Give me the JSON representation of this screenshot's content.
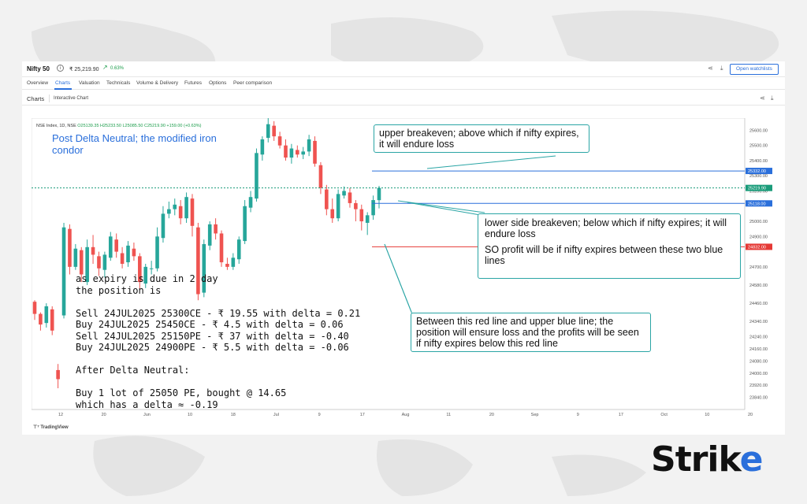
{
  "header": {
    "title": "Nifty 50",
    "price": "₹ 25,219.90",
    "change": "0.63%",
    "watchlist_button": "Open watchlists"
  },
  "tabs": [
    "Overview",
    "Charts",
    "Valuation",
    "Technicals",
    "Volume & Delivery",
    "Futures",
    "Options",
    "Peer comparison"
  ],
  "subbar": {
    "charts": "Charts",
    "interactive": "Interactive Chart"
  },
  "nse_label": {
    "prefix": "NSE Index, 1D, NSE",
    "ohlc": "O25139.35  H25233.50  L25085.50  C25219.90  +159.00 (+0.63%)"
  },
  "annotations": {
    "title": "Post Delta Neutral; the modified iron condor",
    "position_text": "as expiry is due in 2 day\nthe position is\n\nSell 24JUL2025 25300CE - ₹ 19.55 with delta = 0.21\nBuy 24JUL2025 25450CE - ₹ 4.5 with delta = 0.06\nSell 24JUL2025 25150PE - ₹ 37 with delta = -0.40\nBuy 24JUL2025 24900PE - ₹ 5.5 with delta = -0.06\n\nAfter Delta Neutral:\n\nBuy 1 lot of 25050 PE, bought @ 14.65\nwhich has a delta ≈ -0.19",
    "upper_box": "upper breakeven; above which if nifty expires, it will endure loss",
    "lower_box_1": "lower side breakeven; below which if nifty expires; it will endure loss",
    "lower_box_2": "SO profit will be if nifty expires between these two blue lines",
    "red_box": "Between this red line and upper blue line; the position will ensure loss and the profits will be seen if nifty expires below this red line"
  },
  "footer": {
    "tradingview": "TradingView"
  },
  "brand": {
    "logo_start": "Stri",
    "logo_k": "k",
    "logo_e": "e"
  },
  "chart_data": {
    "type": "candlestick",
    "y_ticks": [
      25600,
      25500,
      25400,
      25300,
      25200,
      25000,
      24900,
      24700,
      24580,
      24460,
      24340,
      24240,
      24160,
      24080,
      24000,
      23920,
      23840
    ],
    "ylim": [
      23760,
      25680
    ],
    "x_ticks": [
      "12",
      "20",
      "Jun",
      "10",
      "18",
      "Jul",
      "9",
      "17",
      "Aug",
      "11",
      "20",
      "Sep",
      "9",
      "17",
      "Oct",
      "10",
      "20"
    ],
    "levels": [
      {
        "label": "25332.00",
        "value": 25332,
        "color": "#2a6fdb"
      },
      {
        "label": "25219.90",
        "value": 25219.9,
        "color": "#1a9c7a"
      },
      {
        "label": "25118.00",
        "value": 25118,
        "color": "#2a6fdb"
      },
      {
        "label": "24832.00",
        "value": 24832,
        "color": "#e53935"
      }
    ],
    "candles": [
      [
        24470,
        24390,
        24480,
        24350
      ],
      [
        24390,
        24320,
        24400,
        24280
      ],
      [
        24330,
        24440,
        24460,
        24300
      ],
      [
        24420,
        24280,
        24440,
        24250
      ],
      [
        24020,
        23960,
        24060,
        23900
      ],
      [
        24380,
        24960,
        24990,
        24360
      ],
      [
        24950,
        24700,
        24980,
        24650
      ],
      [
        24700,
        24820,
        24850,
        24680
      ],
      [
        24810,
        24650,
        24830,
        24600
      ],
      [
        24600,
        24830,
        24880,
        24580
      ],
      [
        24830,
        24780,
        24910,
        24720
      ],
      [
        24770,
        24690,
        24800,
        24640
      ],
      [
        24680,
        24780,
        24800,
        24630
      ],
      [
        24760,
        24900,
        24930,
        24740
      ],
      [
        24880,
        24800,
        24920,
        24760
      ],
      [
        24790,
        24720,
        24830,
        24690
      ],
      [
        24730,
        24840,
        24870,
        24700
      ],
      [
        24820,
        24770,
        24860,
        24740
      ],
      [
        24770,
        24600,
        24790,
        24550
      ],
      [
        24590,
        24700,
        24720,
        24560
      ],
      [
        24690,
        24690,
        24740,
        24650
      ],
      [
        24690,
        24900,
        24960,
        24670
      ],
      [
        24890,
        25050,
        25100,
        24860
      ],
      [
        25050,
        25080,
        25130,
        25020
      ],
      [
        25080,
        25110,
        25150,
        25040
      ],
      [
        25100,
        25020,
        25140,
        24980
      ],
      [
        25020,
        25160,
        25190,
        24990
      ],
      [
        25150,
        24970,
        25180,
        24900
      ],
      [
        24960,
        24520,
        24990,
        24480
      ],
      [
        24530,
        24850,
        24880,
        24500
      ],
      [
        24840,
        24980,
        25000,
        24810
      ],
      [
        24980,
        24920,
        25020,
        24880
      ],
      [
        24920,
        24730,
        24940,
        24700
      ],
      [
        24720,
        24700,
        24760,
        24680
      ],
      [
        24700,
        24760,
        24790,
        24680
      ],
      [
        24750,
        24880,
        24900,
        24720
      ],
      [
        24870,
        25100,
        25140,
        24850
      ],
      [
        25090,
        25160,
        25200,
        25060
      ],
      [
        25150,
        25450,
        25480,
        25130
      ],
      [
        25440,
        25540,
        25560,
        25400
      ],
      [
        25550,
        25640,
        25680,
        25520
      ],
      [
        25630,
        25560,
        25660,
        25530
      ],
      [
        25560,
        25500,
        25590,
        25480
      ],
      [
        25500,
        25420,
        25540,
        25400
      ],
      [
        25420,
        25480,
        25510,
        25380
      ],
      [
        25470,
        25440,
        25500,
        25420
      ],
      [
        25440,
        25460,
        25490,
        25410
      ],
      [
        25460,
        25540,
        25570,
        25430
      ],
      [
        25530,
        25380,
        25560,
        25360
      ],
      [
        25370,
        25220,
        25390,
        25180
      ],
      [
        25210,
        25080,
        25240,
        25040
      ],
      [
        25080,
        25020,
        25150,
        24990
      ],
      [
        25020,
        25180,
        25210,
        25000
      ],
      [
        25170,
        25200,
        25230,
        25150
      ],
      [
        25190,
        25120,
        25220,
        25090
      ],
      [
        25120,
        25080,
        25140,
        25000
      ],
      [
        25080,
        25000,
        25110,
        24940
      ],
      [
        24990,
        25040,
        25060,
        24910
      ],
      [
        25040,
        25140,
        25170,
        25010
      ],
      [
        25139.35,
        25219.9,
        25233.5,
        25085.5
      ]
    ]
  }
}
